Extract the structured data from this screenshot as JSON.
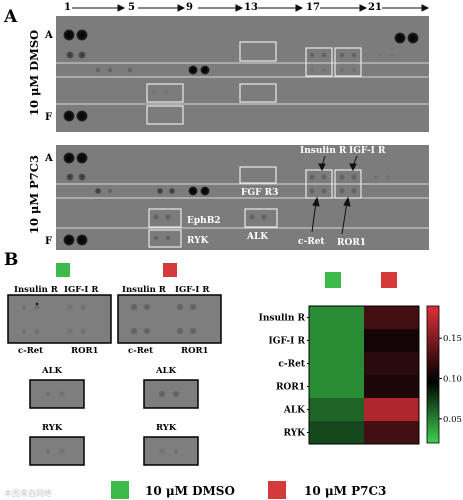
{
  "panel_a": {
    "label": "A",
    "col_numbers": [
      "1",
      "5",
      "9",
      "13",
      "17",
      "21"
    ],
    "row_top": "A",
    "row_bottom": "F",
    "membranes": [
      {
        "condition": "10 μM DMSO"
      },
      {
        "condition": "10 μM P7C3"
      }
    ],
    "annotations": {
      "insulin_r": "Insulin R",
      "igf1_r": "IGF-I R",
      "fgf_r3": "FGF R3",
      "ephb2": "EphB2",
      "ryk": "RYK",
      "alk": "ALK",
      "c_ret": "c-Ret",
      "ror1": "ROR1"
    }
  },
  "panel_b": {
    "label": "B",
    "crop_labels": {
      "insulin_r": "Insulin R",
      "igf1_r": "IGF-I R",
      "c_ret": "c-Ret",
      "ror1": "ROR1",
      "alk": "ALK",
      "ryk": "RYK"
    },
    "legend": [
      {
        "label": "10 μM DMSO",
        "color": "#3dbb4a"
      },
      {
        "label": "10 μM P7C3",
        "color": "#d53a3a"
      }
    ]
  },
  "chart_data": {
    "type": "heatmap",
    "rows": [
      "Insulin R",
      "IGF-I R",
      "c-Ret",
      "ROR1",
      "ALK",
      "RYK"
    ],
    "columns": [
      "10 μM DMSO",
      "10 μM P7C3"
    ],
    "values": [
      [
        0.045,
        0.125
      ],
      [
        0.045,
        0.105
      ],
      [
        0.045,
        0.115
      ],
      [
        0.045,
        0.108
      ],
      [
        0.06,
        0.17
      ],
      [
        0.07,
        0.125
      ]
    ],
    "colorbar": {
      "min": 0.02,
      "max": 0.19,
      "ticks": [
        "0.05",
        "0.10",
        "0.15"
      ],
      "tick_values": [
        0.05,
        0.1,
        0.15
      ],
      "colors": [
        "#3dd14f",
        "#000000",
        "#e0303a"
      ]
    }
  },
  "watermark": "本图来自网络"
}
